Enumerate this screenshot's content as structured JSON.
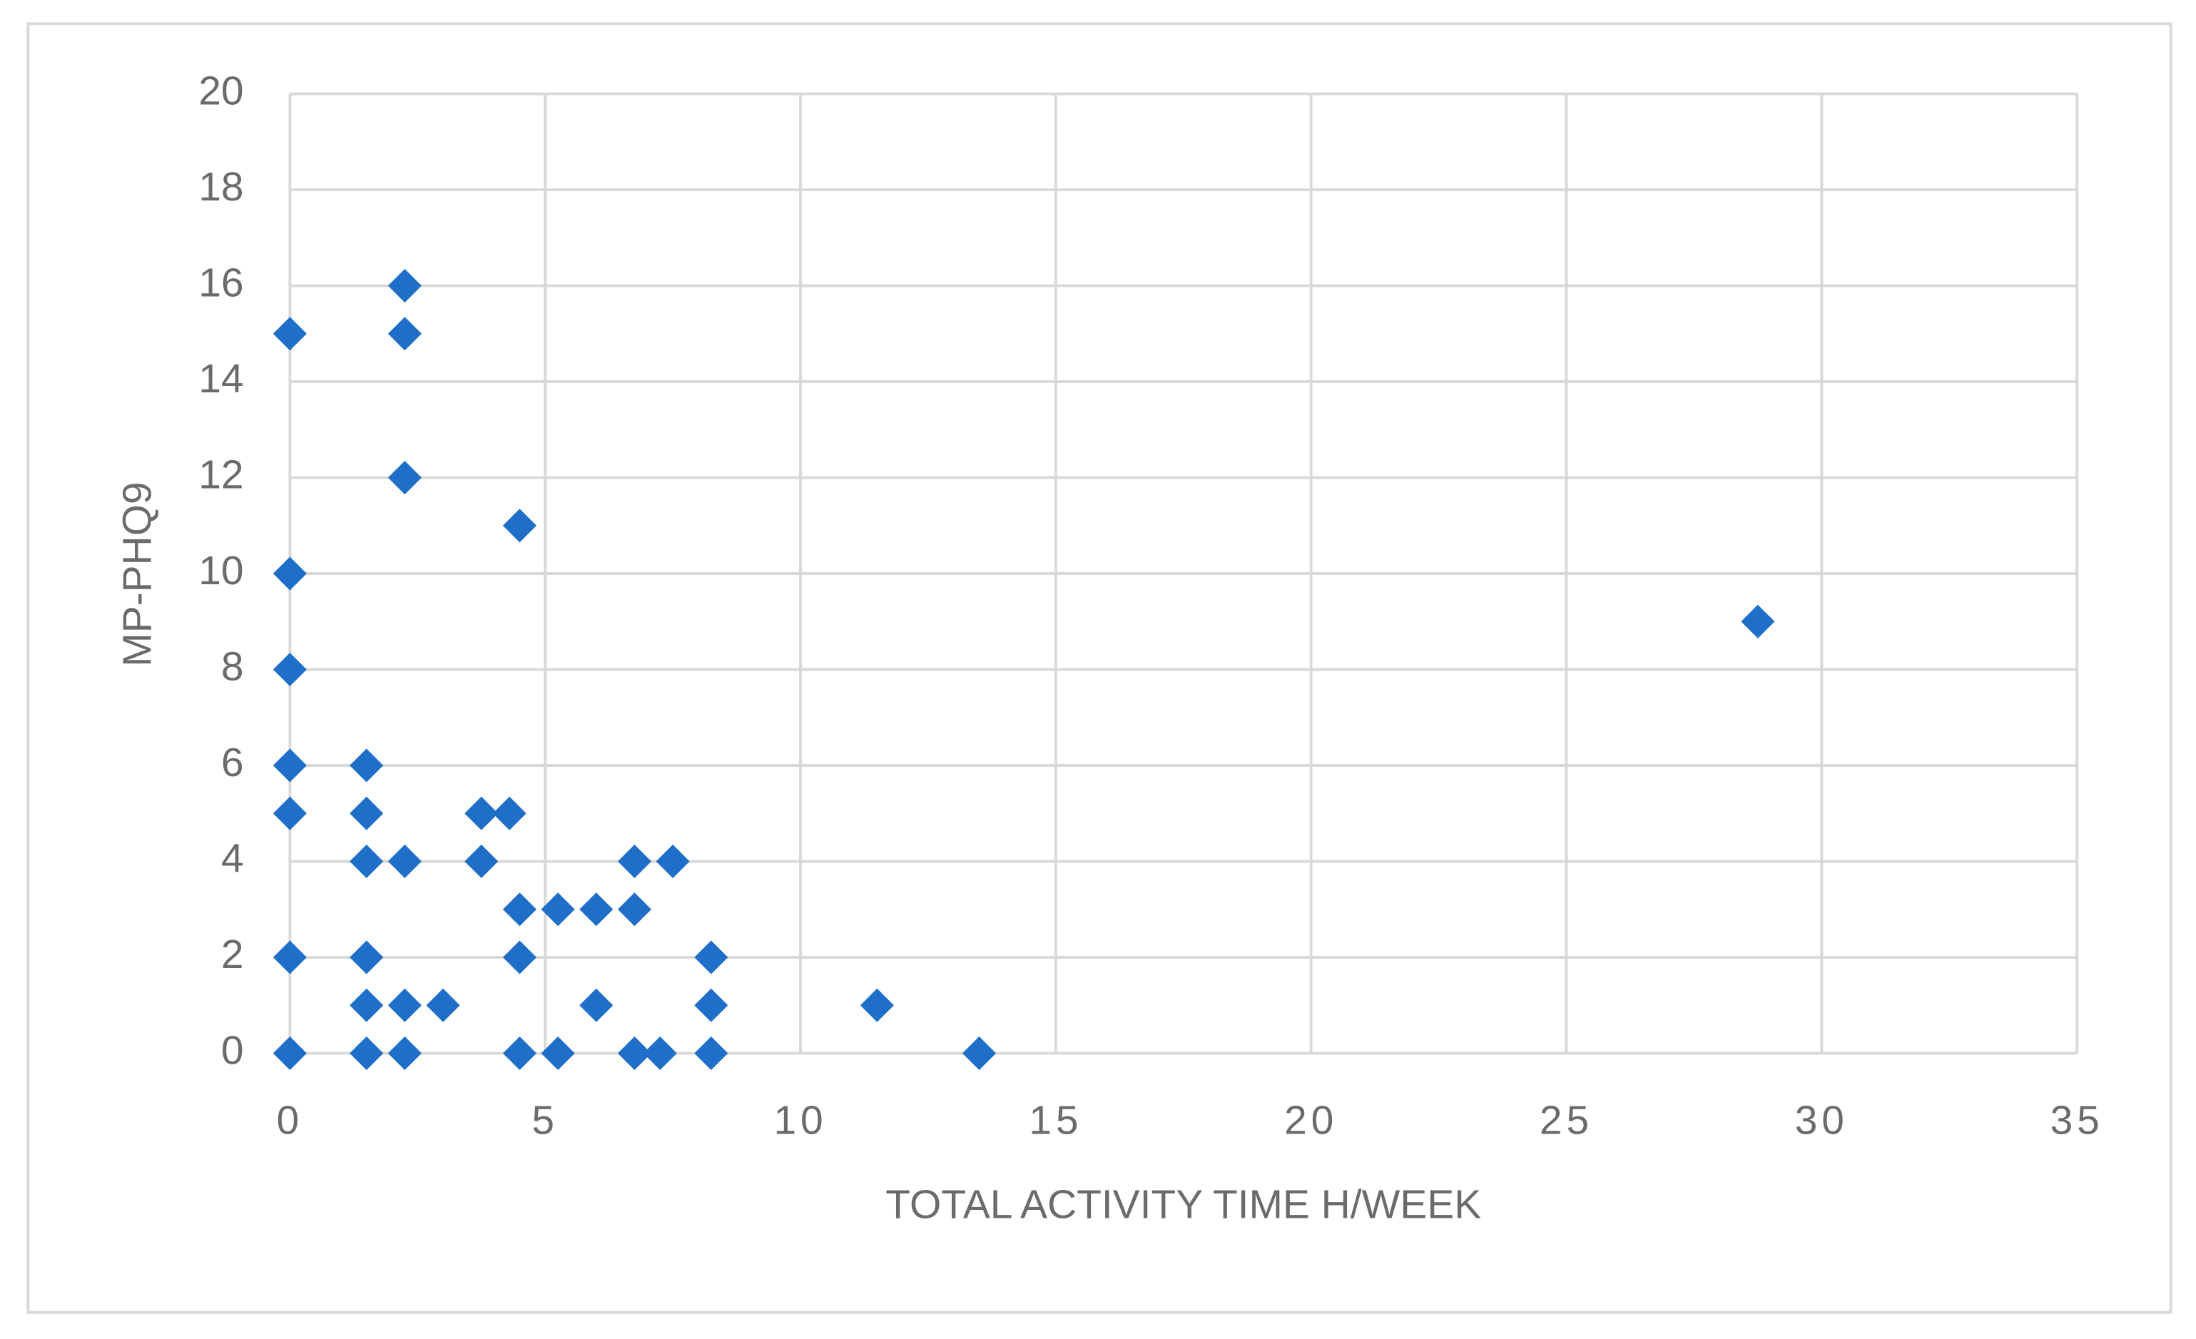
{
  "chart_data": {
    "type": "scatter",
    "x_label": "TOTAL ACTIVITY TIME H/WEEK",
    "y_label": "MP-PHQ9",
    "color": "#1f6fc9",
    "grid": true,
    "xlim": [
      0,
      35
    ],
    "ylim": [
      0,
      20
    ],
    "xticks": [
      0,
      5,
      10,
      15,
      20,
      25,
      30,
      35
    ],
    "yticks": [
      0,
      2,
      4,
      6,
      8,
      10,
      12,
      14,
      16,
      18,
      20
    ],
    "x": [
      0,
      0,
      0,
      0,
      0,
      0,
      0,
      1.5,
      1.5,
      1.5,
      1.5,
      1.5,
      1.5,
      2.25,
      2.25,
      2.25,
      2.25,
      2.25,
      2.25,
      3,
      3.75,
      3.75,
      4.3,
      4.5,
      4.5,
      4.5,
      4.5,
      5.25,
      5.25,
      6,
      6,
      6.75,
      6.75,
      6.75,
      7.25,
      7.5,
      8.25,
      8.25,
      8.25,
      11.5,
      13.5,
      28.75
    ],
    "y": [
      15,
      10,
      8,
      6,
      5,
      2,
      0,
      6,
      5,
      4,
      2,
      1,
      0,
      16,
      15,
      12,
      4,
      1,
      0,
      1,
      5,
      4,
      5,
      11,
      3,
      2,
      0,
      3,
      0,
      3,
      1,
      4,
      3,
      0,
      0,
      4,
      2,
      1,
      0,
      1,
      0,
      9
    ]
  }
}
